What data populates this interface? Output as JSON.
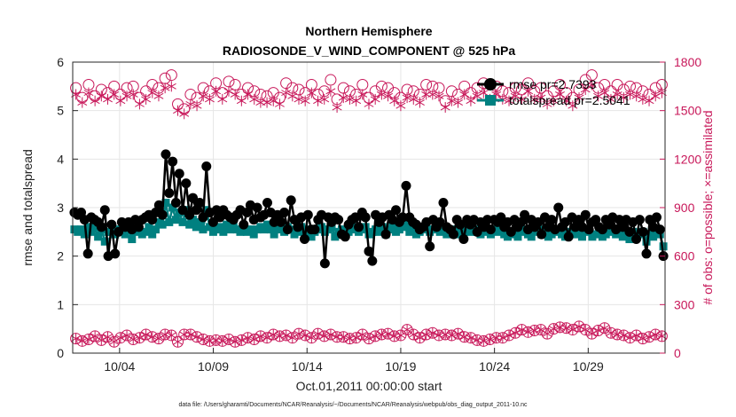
{
  "colors": {
    "rmse": "#000000",
    "spread": "#008080",
    "obs": "#c8185a",
    "grid": "#e6e6e6",
    "axis": "#262626"
  },
  "chart_data": {
    "type": "line",
    "title": "Northern Hemisphere",
    "subtitle": "RADIOSONDE_V_WIND_COMPONENT @ 525 hPa",
    "xlabel": "Oct.01,2011 00:00:00 start",
    "ylabel": "rmse and totalspread",
    "y2label": "# of obs: o=possible; ×=assimilated",
    "xlim": [
      1,
      32.6
    ],
    "ylim": [
      0,
      6
    ],
    "y2lim": [
      0,
      1800
    ],
    "x_ticks": [
      3.5,
      8.5,
      13.5,
      18.5,
      23.5,
      28.5
    ],
    "x_tick_labels": [
      "10/04",
      "10/09",
      "10/14",
      "10/19",
      "10/24",
      "10/29"
    ],
    "y_ticks": [
      0,
      1,
      2,
      3,
      4,
      5,
      6
    ],
    "y_tick_labels": [
      "0",
      "1",
      "2",
      "3",
      "4",
      "5",
      "6"
    ],
    "y2_ticks": [
      0,
      300,
      600,
      900,
      1200,
      1500,
      1800
    ],
    "y2_tick_labels": [
      "0",
      "300",
      "600",
      "900",
      "1200",
      "1500",
      "1800"
    ],
    "footer": "data file: /Users/gharamti/Documents/NCAR/Reanalysis/~/Documents/NCAR/Reanalysis/webpub/obs_diag_output_2011-10.nc",
    "legend_position": "top-right",
    "series": [
      {
        "name": "rmse",
        "legend": "rmse pr=2.7393",
        "axis": "left",
        "marker": "circle",
        "values": [
          2.9,
          2.85,
          2.9,
          2.75,
          2.05,
          2.8,
          2.75,
          2.7,
          2.6,
          2.95,
          2.0,
          2.65,
          2.05,
          2.5,
          2.7,
          2.6,
          2.7,
          2.55,
          2.75,
          2.6,
          2.75,
          2.8,
          2.85,
          2.75,
          2.9,
          3.05,
          2.85,
          4.1,
          3.3,
          3.95,
          3.1,
          3.7,
          2.95,
          3.5,
          2.85,
          3.2,
          2.95,
          3.1,
          2.8,
          3.85,
          2.9,
          2.7,
          2.95,
          2.8,
          2.95,
          2.85,
          2.8,
          2.75,
          2.85,
          2.95,
          2.65,
          2.9,
          3.05,
          2.75,
          3.0,
          2.8,
          2.85,
          3.1,
          2.9,
          2.7,
          2.85,
          2.7,
          2.9,
          2.55,
          3.15,
          2.75,
          2.6,
          2.8,
          2.35,
          2.85,
          2.55,
          2.55,
          2.75,
          2.85,
          1.85,
          2.8,
          2.7,
          2.8,
          2.75,
          2.45,
          2.4,
          2.65,
          2.75,
          2.8,
          2.6,
          2.9,
          2.8,
          2.1,
          1.9,
          2.85,
          2.7,
          2.8,
          2.45,
          2.85,
          2.75,
          2.95,
          2.7,
          2.8,
          3.45,
          2.8,
          2.7,
          2.65,
          2.55,
          2.6,
          2.7,
          2.2,
          2.75,
          2.6,
          2.7,
          3.1,
          2.6,
          2.55,
          2.45,
          2.75,
          2.65,
          2.35,
          2.75,
          2.65,
          2.75,
          2.5,
          2.7,
          2.6,
          2.75,
          2.55,
          2.75,
          2.7,
          2.8,
          2.6,
          2.7,
          2.5,
          2.75,
          2.6,
          2.7,
          2.85,
          2.55,
          2.75,
          2.6,
          2.7,
          2.45,
          2.8,
          2.6,
          2.75,
          2.55,
          3.0,
          2.6,
          2.7,
          2.4,
          2.8,
          2.6,
          2.75,
          2.6,
          2.85,
          2.55,
          2.7,
          2.75,
          2.6,
          2.55,
          2.75,
          2.65,
          2.8,
          2.55,
          2.75,
          2.6,
          2.75,
          2.5,
          2.7,
          2.35,
          2.75,
          2.5,
          2.05,
          2.75,
          2.6,
          2.8,
          2.55,
          2.0
        ]
      },
      {
        "name": "totalspread",
        "legend": "totalspread pr=2.5041",
        "axis": "left",
        "marker": "square",
        "values": [
          2.55,
          2.5,
          2.55,
          2.45,
          2.6,
          2.5,
          2.6,
          2.4,
          2.55,
          2.3,
          2.5,
          2.5,
          2.45,
          2.55,
          2.5,
          2.45,
          2.55,
          2.35,
          2.5,
          2.55,
          2.45,
          2.5,
          2.6,
          2.45,
          2.55,
          2.7,
          2.65,
          3.1,
          2.7,
          3.0,
          2.75,
          2.9,
          2.7,
          2.95,
          2.65,
          2.75,
          2.6,
          2.7,
          2.55,
          2.95,
          2.6,
          2.5,
          2.55,
          2.6,
          2.5,
          2.65,
          2.55,
          2.6,
          2.55,
          2.5,
          2.6,
          2.5,
          2.55,
          2.45,
          2.55,
          2.6,
          2.55,
          2.65,
          2.55,
          2.45,
          2.55,
          2.6,
          2.5,
          2.6,
          2.55,
          2.45,
          2.5,
          2.6,
          2.5,
          2.55,
          2.4,
          2.5,
          2.55,
          2.6,
          2.5,
          2.55,
          2.6,
          2.4,
          2.5,
          2.55,
          2.45,
          2.5,
          2.55,
          2.6,
          2.5,
          2.55,
          2.6,
          2.45,
          2.5,
          2.55,
          2.5,
          2.6,
          2.45,
          2.55,
          2.6,
          2.5,
          2.55,
          2.6,
          2.65,
          2.5,
          2.55,
          2.45,
          2.5,
          2.55,
          2.6,
          2.5,
          2.55,
          2.6,
          2.5,
          2.55,
          2.45,
          2.5,
          2.55,
          2.45,
          2.5,
          2.4,
          2.55,
          2.5,
          2.55,
          2.5,
          2.45,
          2.55,
          2.5,
          2.45,
          2.55,
          2.5,
          2.55,
          2.45,
          2.4,
          2.5,
          2.45,
          2.4,
          2.55,
          2.5,
          2.45,
          2.4,
          2.5,
          2.55,
          2.45,
          2.5,
          2.4,
          2.45,
          2.5,
          2.55,
          2.45,
          2.4,
          2.5,
          2.45,
          2.5,
          2.45,
          2.4,
          2.5,
          2.55,
          2.4,
          2.45,
          2.5,
          2.4,
          2.45,
          2.5,
          2.55,
          2.45,
          2.5,
          2.4,
          2.45,
          2.35,
          2.5,
          2.4,
          2.45,
          2.5,
          2.3,
          2.45,
          2.4,
          2.5,
          2.45,
          2.2
        ]
      },
      {
        "name": "possible",
        "axis": "right",
        "marker": "open-circle",
        "values": [
          1640,
          1580,
          1660,
          1590,
          1630,
          1610,
          1650,
          1600,
          1640,
          1650,
          1580,
          1620,
          1660,
          1640,
          1700,
          1720,
          1540,
          1510,
          1600,
          1580,
          1640,
          1620,
          1670,
          1610,
          1680,
          1660,
          1600,
          1640,
          1620,
          1600,
          1590,
          1610,
          1580,
          1670,
          1640,
          1630,
          1610,
          1660,
          1600,
          1620,
          1690,
          1570,
          1640,
          1620,
          1600,
          1660,
          1580,
          1620,
          1650,
          1640,
          1610,
          1580,
          1630,
          1620,
          1600,
          1660,
          1650,
          1640,
          1560,
          1620,
          1600,
          1650,
          1610,
          1640,
          1670,
          1620,
          1650,
          1620,
          1610,
          1640,
          1630,
          1670,
          1620,
          1640,
          1590,
          1620,
          1660,
          1610,
          1580,
          1630,
          1690,
          1720,
          1640,
          1660,
          1620,
          1660,
          1630,
          1650,
          1640,
          1620,
          1600,
          1640,
          1660
        ]
      },
      {
        "name": "assimilated",
        "axis": "right",
        "marker": "asterisk",
        "values": [
          1600,
          1550,
          1610,
          1560,
          1590,
          1570,
          1600,
          1560,
          1590,
          1600,
          1540,
          1570,
          1610,
          1590,
          1640,
          1650,
          1500,
          1480,
          1540,
          1530,
          1590,
          1570,
          1620,
          1570,
          1620,
          1600,
          1560,
          1600,
          1570,
          1550,
          1550,
          1560,
          1540,
          1610,
          1590,
          1570,
          1560,
          1610,
          1560,
          1570,
          1620,
          1520,
          1580,
          1570,
          1560,
          1600,
          1540,
          1570,
          1600,
          1590,
          1560,
          1530,
          1580,
          1570,
          1550,
          1600,
          1600,
          1590,
          1520,
          1560,
          1550,
          1600,
          1560,
          1590,
          1610,
          1570,
          1600,
          1570,
          1560,
          1590,
          1570,
          1620,
          1570,
          1580,
          1540,
          1560,
          1600,
          1560,
          1530,
          1580,
          1630,
          1660,
          1590,
          1610,
          1570,
          1600,
          1580,
          1600,
          1590,
          1570,
          1560,
          1590,
          1610
        ]
      },
      {
        "name": "possible-lower",
        "axis": "right",
        "marker": "open-circle",
        "values": [
          90,
          75,
          85,
          105,
          80,
          100,
          70,
          95,
          110,
          85,
          95,
          115,
          100,
          90,
          115,
          110,
          70,
          115,
          115,
          100,
          85,
          75,
          80,
          75,
          85,
          70,
          80,
          95,
          85,
          105,
          95,
          115,
          105,
          110,
          95,
          120,
          110,
          95,
          120,
          105,
          115,
          100,
          100,
          90,
          95,
          115,
          90,
          105,
          115,
          120,
          105,
          110,
          145,
          115,
          95,
          115,
          125,
          110,
          115,
          110,
          120,
          100,
          95,
          80,
          75,
          85,
          95,
          95,
          110,
          125,
          145,
          130,
          140,
          145,
          120,
          150,
          160,
          155,
          145,
          165,
          145,
          120,
          140,
          155,
          125,
          115,
          110,
          95,
          110,
          90,
          100,
          115,
          105
        ]
      },
      {
        "name": "assimilated-lower",
        "axis": "right",
        "marker": "asterisk",
        "values": [
          90,
          75,
          85,
          105,
          80,
          100,
          70,
          95,
          110,
          85,
          95,
          115,
          100,
          90,
          115,
          110,
          70,
          115,
          115,
          100,
          85,
          75,
          80,
          75,
          85,
          70,
          80,
          95,
          85,
          105,
          95,
          115,
          105,
          110,
          95,
          120,
          110,
          95,
          120,
          105,
          115,
          100,
          100,
          90,
          95,
          115,
          90,
          105,
          115,
          120,
          105,
          110,
          145,
          115,
          95,
          115,
          125,
          110,
          115,
          110,
          120,
          100,
          95,
          80,
          75,
          85,
          95,
          95,
          110,
          125,
          145,
          130,
          140,
          145,
          120,
          150,
          160,
          155,
          145,
          165,
          145,
          120,
          140,
          155,
          125,
          115,
          110,
          95,
          110,
          90,
          100,
          115,
          105
        ]
      }
    ]
  }
}
